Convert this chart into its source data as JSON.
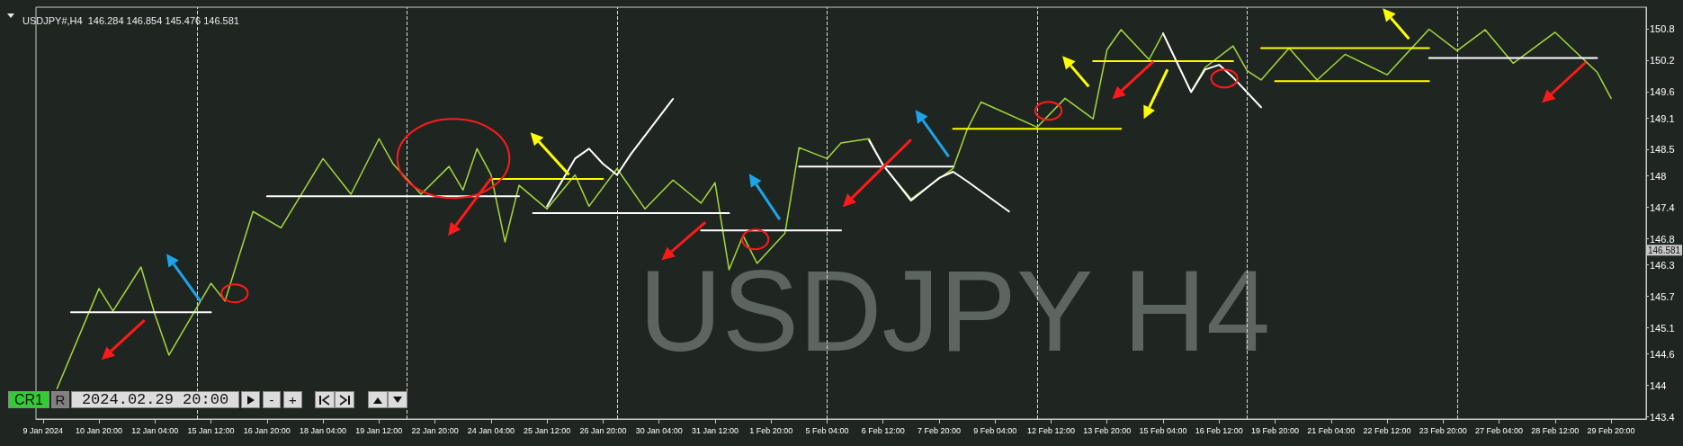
{
  "chart_data": {
    "type": "line",
    "title": "USDJPY#,H4  146.284 146.854 145.476 146.581",
    "categories": [
      "9 Jan 2024",
      null,
      null,
      null,
      "10 Jan 20:00",
      null,
      null,
      null,
      "12 Jan 04:00",
      null,
      null,
      null,
      "15 Jan 12:00",
      null,
      null,
      null,
      "16 Jan 20:00",
      null,
      null,
      null,
      "18 Jan 04:00",
      null,
      null,
      null,
      "19 Jan 12:00",
      null,
      null,
      null,
      "22 Jan 20:00",
      null,
      null,
      null,
      "24 Jan 04:00",
      null,
      null,
      null,
      "25 Jan 12:00",
      null,
      null,
      null,
      "26 Jan 20:00",
      null,
      null,
      null,
      "30 Jan 04:00",
      null,
      null,
      null,
      "31 Jan 12:00",
      null,
      null,
      null,
      "1 Feb 20:00",
      null,
      null,
      null,
      "5 Feb 04:00",
      null,
      null,
      null,
      "6 Feb 12:00",
      null,
      null,
      null,
      "7 Feb 20:00",
      null,
      null,
      null,
      "9 Feb 04:00",
      null,
      null,
      null,
      "12 Feb 12:00",
      null,
      null,
      null,
      "13 Feb 20:00",
      null,
      null,
      null,
      "15 Feb 04:00",
      null,
      null,
      null,
      "16 Feb 12:00",
      null,
      null,
      null,
      "19 Feb 20:00",
      null,
      null,
      null,
      "21 Feb 04:00",
      null,
      null,
      null,
      "22 Feb 12:00",
      null,
      null,
      null,
      "23 Feb 20:00",
      null,
      null,
      null,
      "27 Feb 04:00",
      null,
      null,
      null,
      "28 Feb 12:00",
      null,
      null,
      null,
      "29 Feb 20:00",
      null,
      null
    ],
    "ylim": [
      143.36,
      151.22
    ],
    "yticks": [
      150.8,
      150.2,
      149.6,
      149.1,
      148.5,
      148.0,
      147.4,
      146.8,
      146.3,
      145.7,
      145.1,
      144.6,
      144.0,
      143.4
    ],
    "grid": "x",
    "marker": "none",
    "series": [
      {
        "color": "#a6d83a",
        "values": [
          null,
          143.94,
          null,
          null,
          145.85,
          145.42,
          null,
          146.26,
          145.35,
          144.58,
          null,
          null,
          145.95,
          145.61,
          null,
          147.32,
          null,
          147.01,
          null,
          null,
          148.33,
          null,
          147.65,
          null,
          148.71,
          148.23,
          null,
          147.65,
          null,
          148.18,
          147.73,
          148.52,
          148.02,
          146.74,
          147.82,
          null,
          147.37,
          null,
          148.02,
          147.42,
          null,
          148.14,
          null,
          147.37,
          null,
          147.92,
          null,
          147.48,
          147.87,
          146.21,
          146.86,
          146.33,
          null,
          146.91,
          148.54,
          null,
          148.33,
          148.63,
          null,
          148.71,
          148.2,
          null,
          147.56,
          null,
          null,
          148.14,
          148.88,
          149.41,
          null,
          null,
          null,
          148.93,
          null,
          149.48,
          null,
          149.09,
          150.41,
          150.79,
          null,
          150.22,
          150.72,
          null,
          149.6,
          150.07,
          null,
          150.48,
          150.01,
          149.83,
          null,
          150.44,
          null,
          149.83,
          null,
          150.32,
          null,
          null,
          149.93,
          null,
          null,
          150.8,
          null,
          150.39,
          null,
          150.79,
          null,
          150.15,
          null,
          null,
          150.74,
          null,
          null,
          149.98,
          149.48,
          null,
          null
        ]
      },
      {
        "color": "#ffffff",
        "values": [
          null,
          null,
          145.4,
          null,
          null,
          null,
          null,
          null,
          null,
          null,
          null,
          null,
          145.4,
          null,
          null,
          null,
          null,
          null,
          null,
          null,
          null,
          null,
          null,
          null,
          null,
          null,
          null,
          null,
          null,
          null,
          null,
          null,
          null,
          null,
          null,
          null,
          null,
          null,
          null,
          null,
          null,
          null,
          null,
          null,
          null,
          null,
          null,
          null,
          null,
          null,
          null,
          null,
          null,
          null,
          null,
          null,
          null,
          null,
          null,
          null,
          null,
          null,
          null,
          null,
          null,
          null,
          null,
          null,
          null,
          null,
          null,
          null,
          null,
          null,
          null,
          null,
          null,
          null,
          null,
          null,
          null,
          null,
          null,
          null,
          null,
          null,
          null,
          null,
          null,
          null,
          null,
          null,
          null,
          null,
          null,
          null,
          null,
          null,
          null,
          null,
          null,
          null,
          null,
          null,
          null,
          null,
          null,
          null,
          null,
          null,
          null,
          null,
          null,
          null,
          null
        ]
      },
      {
        "color": "#ffffff",
        "values": [
          null,
          null,
          null,
          null,
          null,
          null,
          null,
          null,
          null,
          null,
          null,
          null,
          null,
          null,
          null,
          null,
          147.61,
          null,
          null,
          null,
          null,
          null,
          null,
          null,
          null,
          null,
          null,
          null,
          null,
          null,
          null,
          null,
          null,
          null,
          147.61,
          null,
          null,
          null,
          null,
          null,
          null,
          null,
          null,
          null,
          null,
          null,
          null,
          null,
          null,
          null,
          null,
          null,
          null,
          null,
          null,
          null,
          null,
          null,
          null,
          null,
          null,
          null,
          null,
          null,
          null,
          null,
          null,
          null,
          null,
          null,
          null,
          null,
          null,
          null,
          null,
          null,
          null,
          null,
          null,
          null,
          null,
          null,
          null,
          null,
          null,
          null,
          null,
          null,
          null,
          null,
          null,
          null,
          null,
          null,
          null,
          null,
          null,
          null,
          null,
          null,
          null,
          null,
          null,
          null,
          null,
          null,
          null,
          null,
          null,
          null,
          null,
          null,
          null,
          null,
          null
        ]
      },
      {
        "color": "#ffffff",
        "values": [
          null,
          null,
          null,
          null,
          null,
          null,
          null,
          null,
          null,
          null,
          null,
          null,
          null,
          null,
          null,
          null,
          null,
          null,
          null,
          null,
          null,
          null,
          null,
          null,
          null,
          null,
          null,
          null,
          null,
          null,
          null,
          null,
          null,
          null,
          null,
          147.29,
          null,
          null,
          null,
          null,
          null,
          null,
          null,
          null,
          null,
          null,
          null,
          null,
          null,
          147.29,
          null,
          null,
          null,
          null,
          null,
          null,
          null,
          null,
          null,
          null,
          null,
          null,
          null,
          null,
          null,
          null,
          null,
          null,
          null,
          null,
          null,
          null,
          null,
          null,
          null,
          null,
          null,
          null,
          null,
          null,
          null,
          null,
          null,
          null,
          null,
          null,
          null,
          null,
          null,
          null,
          null,
          null,
          null,
          null,
          null,
          null,
          null,
          null,
          null,
          null,
          null,
          null,
          null,
          null,
          null,
          null,
          null,
          null,
          null,
          null,
          null,
          null,
          null,
          null,
          null
        ]
      },
      {
        "color": "#ffffff",
        "values": [
          null,
          null,
          null,
          null,
          null,
          null,
          null,
          null,
          null,
          null,
          null,
          null,
          null,
          null,
          null,
          null,
          null,
          null,
          null,
          null,
          null,
          null,
          null,
          null,
          null,
          null,
          null,
          null,
          null,
          null,
          null,
          null,
          null,
          null,
          null,
          null,
          null,
          null,
          null,
          null,
          null,
          null,
          null,
          null,
          null,
          null,
          null,
          146.96,
          null,
          null,
          null,
          null,
          null,
          null,
          null,
          null,
          null,
          146.96,
          null,
          null,
          null,
          null,
          null,
          null,
          null,
          null,
          null,
          null,
          null,
          null,
          null,
          null,
          null,
          null,
          null,
          null,
          null,
          null,
          null,
          null,
          null,
          null,
          null,
          null,
          null,
          null,
          null,
          null,
          null,
          null,
          null,
          null,
          null,
          null,
          null,
          null,
          null,
          null,
          null,
          null,
          null,
          null,
          null,
          null,
          null,
          null,
          null,
          null,
          null,
          null,
          null,
          null,
          null,
          null,
          null
        ]
      },
      {
        "color": "#ffffff",
        "values": [
          null,
          null,
          null,
          null,
          null,
          null,
          null,
          null,
          null,
          null,
          null,
          null,
          null,
          null,
          null,
          null,
          null,
          null,
          null,
          null,
          null,
          null,
          null,
          null,
          null,
          null,
          null,
          null,
          null,
          null,
          null,
          null,
          null,
          null,
          null,
          null,
          null,
          null,
          null,
          null,
          null,
          null,
          null,
          null,
          null,
          null,
          null,
          null,
          null,
          null,
          null,
          null,
          null,
          null,
          148.18,
          null,
          null,
          null,
          null,
          null,
          null,
          null,
          null,
          null,
          null,
          148.18,
          null,
          null,
          null,
          null,
          null,
          null,
          null,
          null,
          null,
          null,
          null,
          null,
          null,
          null,
          null,
          null,
          null,
          null,
          null,
          null,
          null,
          null,
          null,
          null,
          null,
          null,
          null,
          null,
          null,
          null,
          null,
          null,
          null,
          null,
          null,
          null,
          null,
          null,
          null,
          null,
          null,
          null,
          null,
          null,
          null,
          null,
          null,
          null,
          null
        ]
      },
      {
        "color": "#ffffff",
        "values": [
          null,
          null,
          null,
          null,
          null,
          null,
          null,
          null,
          null,
          null,
          null,
          null,
          null,
          null,
          null,
          null,
          null,
          null,
          null,
          null,
          null,
          null,
          null,
          null,
          null,
          null,
          null,
          null,
          null,
          null,
          null,
          null,
          null,
          null,
          null,
          null,
          null,
          null,
          null,
          null,
          null,
          null,
          null,
          null,
          null,
          null,
          null,
          null,
          null,
          null,
          null,
          null,
          null,
          null,
          null,
          null,
          null,
          null,
          null,
          null,
          null,
          null,
          null,
          null,
          null,
          null,
          null,
          null,
          null,
          null,
          null,
          null,
          null,
          null,
          null,
          null,
          null,
          null,
          null,
          null,
          null,
          null,
          null,
          null,
          null,
          null,
          null,
          null,
          null,
          null,
          null,
          null,
          null,
          null,
          null,
          null,
          null,
          null,
          null,
          150.25,
          null,
          null,
          null,
          null,
          null,
          null,
          null,
          null,
          null,
          null,
          null,
          150.25,
          null,
          null,
          null
        ]
      },
      {
        "color": "#ffff00",
        "values": [
          null,
          null,
          null,
          null,
          null,
          null,
          null,
          null,
          null,
          null,
          null,
          null,
          null,
          null,
          null,
          null,
          null,
          null,
          null,
          null,
          null,
          null,
          null,
          null,
          null,
          null,
          null,
          null,
          null,
          null,
          null,
          null,
          147.94,
          null,
          null,
          null,
          null,
          null,
          null,
          null,
          147.94,
          null,
          null,
          null,
          null,
          null,
          null,
          null,
          null,
          null,
          null,
          null,
          null,
          null,
          null,
          null,
          null,
          null,
          null,
          null,
          null,
          null,
          null,
          null,
          null,
          null,
          null,
          null,
          null,
          null,
          null,
          null,
          null,
          null,
          null,
          null,
          null,
          null,
          null,
          null,
          null,
          null,
          null,
          null,
          null,
          null,
          null,
          null,
          null,
          null,
          null,
          null,
          null,
          null,
          null,
          null,
          null,
          null,
          null,
          null,
          null,
          null,
          null,
          null,
          null,
          null,
          null,
          null,
          null,
          null,
          null,
          null,
          null,
          null,
          null
        ]
      },
      {
        "color": "#ffff00",
        "values": [
          null,
          null,
          null,
          null,
          null,
          null,
          null,
          null,
          null,
          null,
          null,
          null,
          null,
          null,
          null,
          null,
          null,
          null,
          null,
          null,
          null,
          null,
          null,
          null,
          null,
          null,
          null,
          null,
          null,
          null,
          null,
          null,
          null,
          null,
          null,
          null,
          null,
          null,
          null,
          null,
          null,
          null,
          null,
          null,
          null,
          null,
          null,
          null,
          null,
          null,
          null,
          null,
          null,
          null,
          null,
          null,
          null,
          null,
          null,
          null,
          null,
          null,
          null,
          null,
          null,
          148.9,
          null,
          null,
          null,
          null,
          null,
          null,
          null,
          null,
          null,
          null,
          null,
          148.9,
          null,
          null,
          null,
          null,
          null,
          null,
          null,
          null,
          null,
          null,
          null,
          null,
          null,
          null,
          null,
          null,
          null,
          null,
          null,
          null,
          null,
          null,
          null,
          null,
          null,
          null,
          null,
          null,
          null,
          null,
          null,
          null,
          null,
          null,
          null,
          null,
          null
        ]
      },
      {
        "color": "#ffff00",
        "values": [
          null,
          null,
          null,
          null,
          null,
          null,
          null,
          null,
          null,
          null,
          null,
          null,
          null,
          null,
          null,
          null,
          null,
          null,
          null,
          null,
          null,
          null,
          null,
          null,
          null,
          null,
          null,
          null,
          null,
          null,
          null,
          null,
          null,
          null,
          null,
          null,
          null,
          null,
          null,
          null,
          null,
          null,
          null,
          null,
          null,
          null,
          null,
          null,
          null,
          null,
          null,
          null,
          null,
          null,
          null,
          null,
          null,
          null,
          null,
          null,
          null,
          null,
          null,
          null,
          null,
          null,
          null,
          null,
          null,
          null,
          null,
          null,
          null,
          null,
          null,
          150.19,
          null,
          null,
          null,
          null,
          null,
          null,
          null,
          null,
          null,
          150.19,
          null,
          null,
          null,
          null,
          null,
          null,
          null,
          null,
          null,
          null,
          null,
          null,
          null,
          null,
          null,
          null,
          null,
          null,
          null,
          null,
          null,
          null,
          null,
          null,
          null,
          null,
          null,
          null,
          null
        ]
      },
      {
        "color": "#ffff00",
        "values": [
          null,
          null,
          null,
          null,
          null,
          null,
          null,
          null,
          null,
          null,
          null,
          null,
          null,
          null,
          null,
          null,
          null,
          null,
          null,
          null,
          null,
          null,
          null,
          null,
          null,
          null,
          null,
          null,
          null,
          null,
          null,
          null,
          null,
          null,
          null,
          null,
          null,
          null,
          null,
          null,
          null,
          null,
          null,
          null,
          null,
          null,
          null,
          null,
          null,
          null,
          null,
          null,
          null,
          null,
          null,
          null,
          null,
          null,
          null,
          null,
          null,
          null,
          null,
          null,
          null,
          null,
          null,
          null,
          null,
          null,
          null,
          null,
          null,
          null,
          null,
          null,
          null,
          null,
          null,
          null,
          null,
          null,
          null,
          null,
          null,
          null,
          null,
          150.44,
          null,
          null,
          null,
          null,
          null,
          null,
          null,
          null,
          null,
          null,
          null,
          150.44,
          null,
          null,
          null,
          null,
          null,
          null,
          null,
          null,
          null,
          null,
          null,
          null,
          null,
          null,
          null
        ]
      },
      {
        "color": "#ffff00",
        "values": [
          null,
          null,
          null,
          null,
          null,
          null,
          null,
          null,
          null,
          null,
          null,
          null,
          null,
          null,
          null,
          null,
          null,
          null,
          null,
          null,
          null,
          null,
          null,
          null,
          null,
          null,
          null,
          null,
          null,
          null,
          null,
          null,
          null,
          null,
          null,
          null,
          null,
          null,
          null,
          null,
          null,
          null,
          null,
          null,
          null,
          null,
          null,
          null,
          null,
          null,
          null,
          null,
          null,
          null,
          null,
          null,
          null,
          null,
          null,
          null,
          null,
          null,
          null,
          null,
          null,
          null,
          null,
          null,
          null,
          null,
          null,
          null,
          null,
          null,
          null,
          null,
          null,
          null,
          null,
          null,
          null,
          null,
          null,
          null,
          null,
          null,
          null,
          null,
          149.81,
          null,
          null,
          null,
          null,
          null,
          null,
          null,
          null,
          null,
          null,
          149.81,
          null,
          null,
          null,
          null,
          null,
          null,
          null,
          null,
          null,
          null,
          null,
          null,
          null,
          null,
          null
        ]
      },
      {
        "color": "#ffffff",
        "values": [
          null,
          null,
          null,
          null,
          null,
          null,
          null,
          null,
          null,
          null,
          null,
          null,
          null,
          null,
          null,
          null,
          null,
          null,
          null,
          null,
          null,
          null,
          null,
          null,
          null,
          null,
          null,
          null,
          null,
          null,
          null,
          null,
          null,
          null,
          null,
          null,
          147.42,
          null,
          148.33,
          148.52,
          148.23,
          148.02,
          148.42,
          null,
          null,
          149.47,
          null,
          null,
          null,
          null,
          null,
          null,
          null,
          null,
          null,
          null,
          null,
          null,
          null,
          null,
          null,
          null,
          null,
          null,
          null,
          null,
          null,
          null,
          null,
          null,
          null,
          null,
          null,
          null,
          null,
          null,
          null,
          null,
          null,
          null,
          null,
          null,
          null,
          null,
          null,
          null,
          null,
          null,
          null,
          null,
          null,
          null,
          null,
          null,
          null,
          null,
          null,
          null,
          null,
          null,
          null,
          null,
          null,
          null,
          null,
          null,
          null,
          null,
          null,
          null,
          null,
          null,
          null,
          null,
          null
        ]
      },
      {
        "color": "#ffffff",
        "values": [
          null,
          null,
          null,
          null,
          null,
          null,
          null,
          null,
          null,
          null,
          null,
          null,
          null,
          null,
          null,
          null,
          null,
          null,
          null,
          null,
          null,
          null,
          null,
          null,
          null,
          null,
          null,
          null,
          null,
          null,
          null,
          null,
          null,
          null,
          null,
          null,
          null,
          null,
          null,
          null,
          null,
          null,
          null,
          null,
          null,
          null,
          null,
          null,
          null,
          null,
          null,
          null,
          null,
          null,
          null,
          null,
          null,
          null,
          null,
          148.68,
          148.21,
          null,
          147.53,
          null,
          147.96,
          148.08,
          147.9,
          null,
          null,
          147.32,
          null,
          null,
          null,
          null,
          null,
          null,
          null,
          null,
          null,
          null,
          null,
          null,
          null,
          null,
          null,
          null,
          null,
          null,
          null,
          null,
          null,
          null,
          null,
          null,
          null,
          null,
          null,
          null,
          null,
          null,
          null,
          null,
          null,
          null,
          null,
          null,
          null,
          null,
          null,
          null,
          null,
          null,
          null,
          null,
          null
        ]
      },
      {
        "color": "#ffffff",
        "values": [
          null,
          null,
          null,
          null,
          null,
          null,
          null,
          null,
          null,
          null,
          null,
          null,
          null,
          null,
          null,
          null,
          null,
          null,
          null,
          null,
          null,
          null,
          null,
          null,
          null,
          null,
          null,
          null,
          null,
          null,
          null,
          null,
          null,
          null,
          null,
          null,
          null,
          null,
          null,
          null,
          null,
          null,
          null,
          null,
          null,
          null,
          null,
          null,
          null,
          null,
          null,
          null,
          null,
          null,
          null,
          null,
          null,
          null,
          null,
          null,
          null,
          null,
          null,
          null,
          null,
          null,
          null,
          null,
          null,
          null,
          null,
          null,
          null,
          null,
          null,
          null,
          null,
          null,
          null,
          null,
          150.72,
          null,
          149.6,
          150.03,
          150.12,
          149.88,
          null,
          149.31,
          null,
          null,
          null,
          null,
          null,
          null,
          null,
          null,
          null,
          null,
          null,
          null,
          null,
          null,
          null,
          null,
          null,
          null,
          null,
          null,
          null,
          null,
          null,
          null,
          null,
          null,
          null
        ]
      }
    ],
    "annotations": [
      "USDJPY H4",
      {
        "text": "146.581",
        "y": 146.581
      },
      "CR1",
      "R",
      "2024.02.29 20:00",
      "-",
      "+"
    ]
  }
}
